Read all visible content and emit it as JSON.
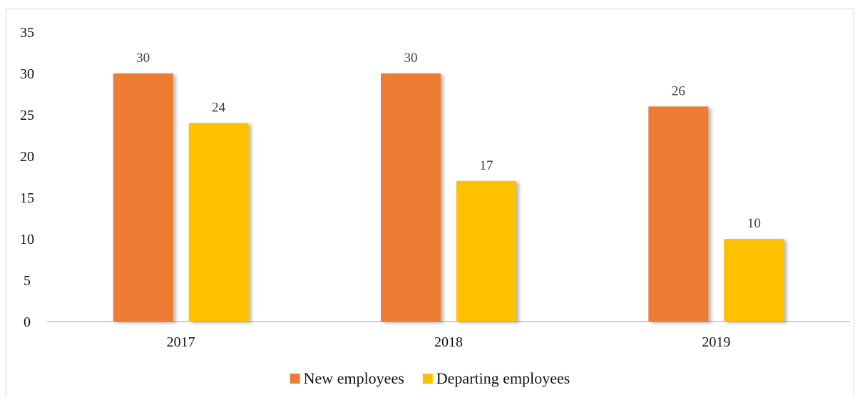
{
  "chart_data": {
    "type": "bar",
    "title": "",
    "xlabel": "",
    "ylabel": "",
    "categories": [
      "2017",
      "2018",
      "2019"
    ],
    "ylim": [
      0,
      35
    ],
    "yticks": [
      0,
      5,
      10,
      15,
      20,
      25,
      30,
      35
    ],
    "grid": false,
    "legend_position": "bottom",
    "data_labels": true,
    "series": [
      {
        "name": "New employees",
        "values": [
          30,
          30,
          26
        ],
        "color": "#ED7D31"
      },
      {
        "name": "Departing employees",
        "values": [
          24,
          17,
          10
        ],
        "color": "#FFC000"
      }
    ]
  }
}
